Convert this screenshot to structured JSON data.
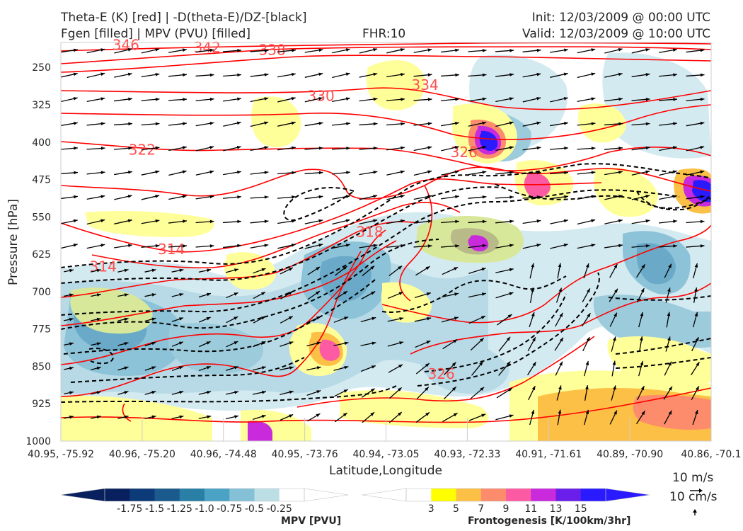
{
  "header": {
    "title_line1": "Theta-E (K) [red] | -D(theta-E)/DZ-[black]",
    "title_line2": "Fgen [filled] | MPV (PVU) [filled]",
    "fhr": "FHR:10",
    "init": "Init: 12/03/2009 @ 00:00 UTC",
    "valid": "Valid: 12/03/2009 @ 10:00 UTC"
  },
  "chart_data": {
    "type": "cross-section",
    "xlabel": "Latitude,Longitude",
    "ylabel": "Pressure [hPa]",
    "x_ticks": [
      "40.95, -75.92",
      "40.96, -75.20",
      "40.96, -74.48",
      "40.95, -73.76",
      "40.94, -73.05",
      "40.93, -72.33",
      "40.91, -71.61",
      "40.89, -70.90",
      "40.86, -70.1"
    ],
    "y_ticks": [
      250,
      325,
      400,
      475,
      550,
      625,
      700,
      775,
      850,
      925,
      1000
    ],
    "ylim": [
      1000,
      200
    ],
    "y_inverted": true,
    "theta_e_contour_labels": [
      {
        "label": "346",
        "x_frac": 0.1,
        "p": 205
      },
      {
        "label": "342",
        "x_frac": 0.225,
        "p": 210
      },
      {
        "label": "338",
        "x_frac": 0.325,
        "p": 215
      },
      {
        "label": "334",
        "x_frac": 0.56,
        "p": 285
      },
      {
        "label": "330",
        "x_frac": 0.4,
        "p": 307
      },
      {
        "label": "326",
        "x_frac": 0.62,
        "p": 420
      },
      {
        "label": "322",
        "x_frac": 0.125,
        "p": 415
      },
      {
        "label": "318",
        "x_frac": 0.475,
        "p": 580
      },
      {
        "label": "314",
        "x_frac": 0.17,
        "p": 615
      },
      {
        "label": "314",
        "x_frac": 0.065,
        "p": 650
      },
      {
        "label": "326",
        "x_frac": 0.585,
        "p": 865
      }
    ],
    "theta_e_color": "#ff0000",
    "dthetae_dz_color": "#000000",
    "mpv_colorbar": {
      "title": "MPV [PVU]",
      "labels": [
        "-1.75",
        "-1.5",
        "-1.25",
        "-1.0",
        "-0.75",
        "-0.5",
        "-0.25"
      ],
      "colors": [
        "#08205e",
        "#0d3b7a",
        "#1a5a8c",
        "#2a7fa6",
        "#4aa3c4",
        "#84c1d6",
        "#bcdfe6",
        "#ffffff"
      ]
    },
    "fgen_colorbar": {
      "title": "Frontogenesis [K/100km/3hr]",
      "labels": [
        "3",
        "5",
        "7",
        "9",
        "11",
        "13",
        "15"
      ],
      "colors": [
        "#ffffff",
        "#ffff00",
        "#fcc046",
        "#fc8c6c",
        "#fc5aa2",
        "#c82adc",
        "#6a1eea",
        "#2a1aff"
      ]
    },
    "vector_legend": {
      "horizontal": "10 m/s",
      "vertical": "10 cm/s"
    }
  }
}
